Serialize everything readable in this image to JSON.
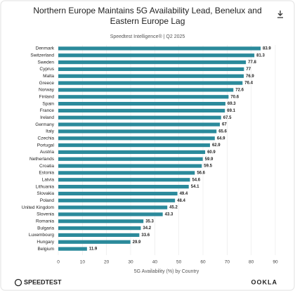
{
  "chart_data": {
    "type": "bar",
    "orientation": "horizontal",
    "title": "Northern Europe Maintains 5G Availability Lead, Benelux and Eastern Europe Lag",
    "subtitle": "Speedtest Intelligence® | Q2 2025",
    "x_label": "5G Availability (%) by Country",
    "categories": [
      "Denmark",
      "Switzerland",
      "Sweden",
      "Cyprus",
      "Malta",
      "Greece",
      "Norway",
      "Finland",
      "Spain",
      "France",
      "Ireland",
      "Germany",
      "Italy",
      "Czechia",
      "Portugal",
      "Austria",
      "Netherlands",
      "Croatia",
      "Estonia",
      "Latvia",
      "Lithuania",
      "Slovakia",
      "Poland",
      "United Kingdom",
      "Slovenia",
      "Romania",
      "Bulgaria",
      "Luxembourg",
      "Hungary",
      "Belgium"
    ],
    "values": [
      83.9,
      81.3,
      77.8,
      77,
      76.9,
      76.4,
      72.6,
      70.6,
      69.3,
      69.1,
      67.5,
      67,
      65.6,
      64.9,
      62.9,
      60.9,
      59.9,
      59.5,
      56.6,
      54.6,
      54.1,
      49.4,
      48.4,
      45.2,
      43.3,
      35.3,
      34.2,
      33.6,
      29.9,
      11.9
    ],
    "color": "#2b8a9b",
    "xlim": [
      0,
      90
    ],
    "xticks": [
      0,
      10,
      20,
      30,
      40,
      50,
      60,
      70,
      80,
      90
    ],
    "grid": true,
    "brand_left": "SPEEDTEST",
    "brand_right": "OOKLA"
  }
}
